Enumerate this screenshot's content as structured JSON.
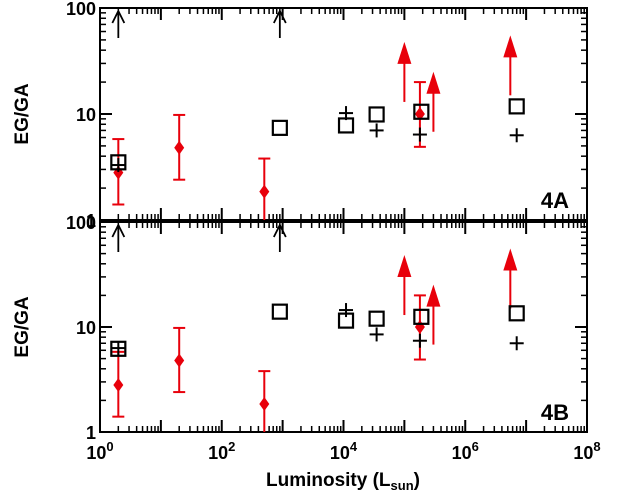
{
  "chart_data": [
    {
      "type": "scatter",
      "panel_label": "4A",
      "xlabel": "Luminosity (L",
      "xlabel_sub": "sun",
      "xlabel_close": ")",
      "ylabel": "EG/GA",
      "xscale": "log",
      "yscale": "log",
      "xlim": [
        1,
        100000000
      ],
      "ylim": [
        1,
        100
      ],
      "xticks": [
        "10^0",
        "10^2",
        "10^4",
        "10^6",
        "10^8"
      ],
      "yticks": [
        "1",
        "10",
        "100"
      ],
      "colors": {
        "red": "#e8000b",
        "black": "#000000"
      },
      "series": {
        "red_diamonds": [
          {
            "x": 2,
            "y": 2.8,
            "ylo": 1.4,
            "yhi": 5.8
          },
          {
            "x": 20,
            "y": 4.8,
            "ylo": 2.4,
            "yhi": 9.8
          },
          {
            "x": 500,
            "y": 1.85,
            "ylo": 0.95,
            "yhi": 3.8
          },
          {
            "x": 180000,
            "y": 10,
            "ylo": 4.9,
            "yhi": 20
          }
        ],
        "red_lower_limits": [
          {
            "x": 100000,
            "y": 13
          },
          {
            "x": 300000,
            "y": 6.8
          },
          {
            "x": 5500000,
            "y": 15
          }
        ],
        "black_squares": [
          {
            "x": 2,
            "y": 3.5
          },
          {
            "x": 900,
            "y": 7.4
          },
          {
            "x": 11000,
            "y": 7.8
          },
          {
            "x": 35000,
            "y": 9.9
          },
          {
            "x": 190000,
            "y": 10.5
          },
          {
            "x": 7000000,
            "y": 11.8
          }
        ],
        "black_plus": [
          {
            "x": 2,
            "y": 3.3
          },
          {
            "x": 11000,
            "y": 10.2
          },
          {
            "x": 35000,
            "y": 7.0
          },
          {
            "x": 180000,
            "y": 6.4
          },
          {
            "x": 7000000,
            "y": 6.3
          }
        ],
        "black_up_arrows": [
          {
            "x": 2
          },
          {
            "x": 900
          }
        ]
      }
    },
    {
      "type": "scatter",
      "panel_label": "4B",
      "xlabel": "Luminosity (L",
      "xlabel_sub": "sun",
      "xlabel_close": ")",
      "ylabel": "EG/GA",
      "xscale": "log",
      "yscale": "log",
      "xlim": [
        1,
        100000000
      ],
      "ylim": [
        1,
        100
      ],
      "xticks": [
        "10^0",
        "10^2",
        "10^4",
        "10^6",
        "10^8"
      ],
      "yticks": [
        "1",
        "10",
        "100"
      ],
      "colors": {
        "red": "#e8000b",
        "black": "#000000"
      },
      "series": {
        "red_diamonds": [
          {
            "x": 2,
            "y": 2.8,
            "ylo": 1.4,
            "yhi": 5.8
          },
          {
            "x": 20,
            "y": 4.8,
            "ylo": 2.4,
            "yhi": 9.8
          },
          {
            "x": 500,
            "y": 1.85,
            "ylo": 0.95,
            "yhi": 3.8
          },
          {
            "x": 180000,
            "y": 10,
            "ylo": 4.9,
            "yhi": 20
          }
        ],
        "red_lower_limits": [
          {
            "x": 100000,
            "y": 13
          },
          {
            "x": 300000,
            "y": 6.8
          },
          {
            "x": 5500000,
            "y": 15
          }
        ],
        "black_squares": [
          {
            "x": 2,
            "y": 6.2
          },
          {
            "x": 900,
            "y": 14
          },
          {
            "x": 11000,
            "y": 11.5
          },
          {
            "x": 35000,
            "y": 12
          },
          {
            "x": 190000,
            "y": 12.5
          },
          {
            "x": 7000000,
            "y": 13.5
          }
        ],
        "black_plus": [
          {
            "x": 2,
            "y": 6.3
          },
          {
            "x": 11000,
            "y": 14.5
          },
          {
            "x": 35000,
            "y": 8.5
          },
          {
            "x": 180000,
            "y": 7.4
          },
          {
            "x": 7000000,
            "y": 7.0
          }
        ],
        "black_up_arrows": [
          {
            "x": 2
          },
          {
            "x": 900
          }
        ]
      }
    }
  ]
}
